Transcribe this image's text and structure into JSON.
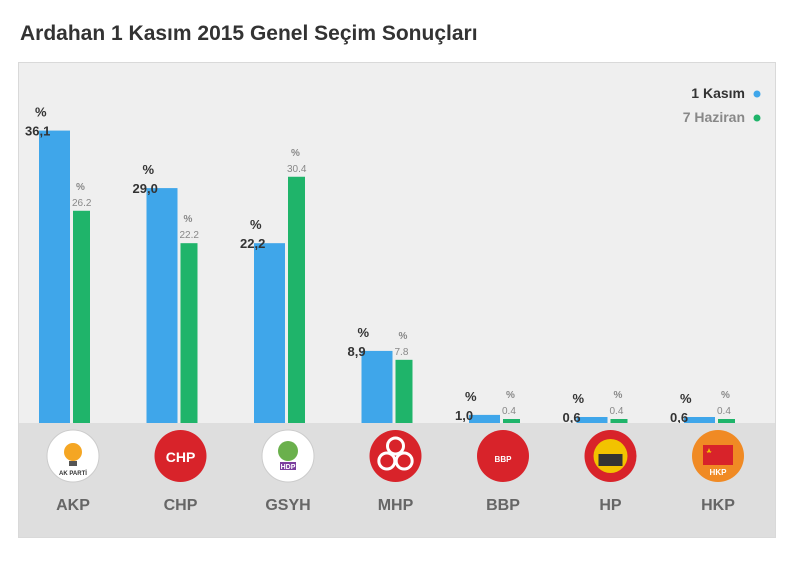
{
  "title": "Ardahan 1 Kasım 2015 Genel Seçim Sonuçları",
  "chart_data": {
    "type": "bar",
    "ylim": [
      0,
      40
    ],
    "percent_symbol": "%",
    "categories": [
      "AKP",
      "CHP",
      "GSYH",
      "MHP",
      "BBP",
      "HP",
      "HKP"
    ],
    "series": [
      {
        "name": "1 Kasım",
        "color": "#3fa6ea",
        "values": [
          36.1,
          29.0,
          22.2,
          8.9,
          1.0,
          0.6,
          0.6
        ],
        "labels": [
          "36,1",
          "29,0",
          "22,2",
          "8,9",
          "1,0",
          "0,6",
          "0,6"
        ]
      },
      {
        "name": "7 Haziran",
        "color": "#1fb46a",
        "values": [
          26.2,
          22.2,
          30.4,
          7.8,
          0.4,
          0.4,
          0.4
        ],
        "labels": [
          "26.2",
          "22.2",
          "30.4",
          "7.8",
          "0.4",
          "0.4",
          "0.4"
        ]
      }
    ],
    "legend_position": "top-right",
    "logos": [
      {
        "name": "akp-logo-icon",
        "bg": "#ffffff",
        "fg": "#f5a623",
        "text": "AK PARTİ"
      },
      {
        "name": "chp-logo-icon",
        "bg": "#d8232a",
        "fg": "#ffffff",
        "text": "CHP"
      },
      {
        "name": "hdp-logo-icon",
        "bg": "#ffffff",
        "fg": "#2e8b3a",
        "text": "HDP"
      },
      {
        "name": "mhp-logo-icon",
        "bg": "#d8232a",
        "fg": "#ffffff",
        "text": ""
      },
      {
        "name": "bbp-logo-icon",
        "bg": "#d8232a",
        "fg": "#ffffff",
        "text": "BBP"
      },
      {
        "name": "hp-logo-icon",
        "bg": "#d8232a",
        "fg": "#f2c300",
        "text": ""
      },
      {
        "name": "hkp-logo-icon",
        "bg": "#f08a24",
        "fg": "#d8232a",
        "text": "HKP"
      }
    ]
  }
}
